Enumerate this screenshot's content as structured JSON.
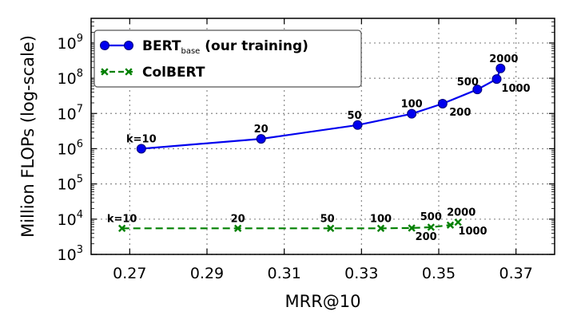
{
  "chart_data": {
    "type": "line",
    "xlabel": "MRR@10",
    "ylabel": "Million FLOPs (log-scale)",
    "xlim": [
      0.26,
      0.38
    ],
    "ylim_log10": [
      3,
      9.7
    ],
    "y_scale": "log",
    "grid": true,
    "legend_position": "top-left",
    "x_ticks": [
      "0.27",
      "0.29",
      "0.31",
      "0.33",
      "0.35",
      "0.37"
    ],
    "x_tick_values": [
      0.27,
      0.29,
      0.31,
      0.33,
      0.35,
      0.37
    ],
    "y_ticks": [
      {
        "base": "10",
        "exp": "3",
        "value": 3
      },
      {
        "base": "10",
        "exp": "4",
        "value": 4
      },
      {
        "base": "10",
        "exp": "5",
        "value": 5
      },
      {
        "base": "10",
        "exp": "6",
        "value": 6
      },
      {
        "base": "10",
        "exp": "7",
        "value": 7
      },
      {
        "base": "10",
        "exp": "8",
        "value": 8
      },
      {
        "base": "10",
        "exp": "9",
        "value": 9
      }
    ],
    "series": [
      {
        "name": "BERT",
        "name_subscript": "base",
        "name_suffix": " (our training)",
        "color": "#0000ee",
        "marker": "circle",
        "line_style": "solid",
        "x": [
          0.273,
          0.304,
          0.329,
          0.343,
          0.351,
          0.36,
          0.365,
          0.366
        ],
        "y": [
          1000000,
          1900000,
          4700000,
          9800000,
          19000000,
          48000000,
          95000000,
          190000000
        ],
        "labels": [
          "k=10",
          "20",
          "50",
          "100",
          "200",
          "500",
          "1000",
          "2000"
        ]
      },
      {
        "name": "ColBERT",
        "color": "#008000",
        "marker": "x",
        "line_style": "dashed",
        "x": [
          0.268,
          0.298,
          0.322,
          0.335,
          0.343,
          0.348,
          0.353,
          0.355
        ],
        "y": [
          5500,
          5500,
          5500,
          5500,
          5600,
          5900,
          6800,
          8200
        ],
        "labels": [
          "k=10",
          "20",
          "50",
          "100",
          "200",
          "500",
          "1000",
          "2000"
        ]
      }
    ]
  }
}
